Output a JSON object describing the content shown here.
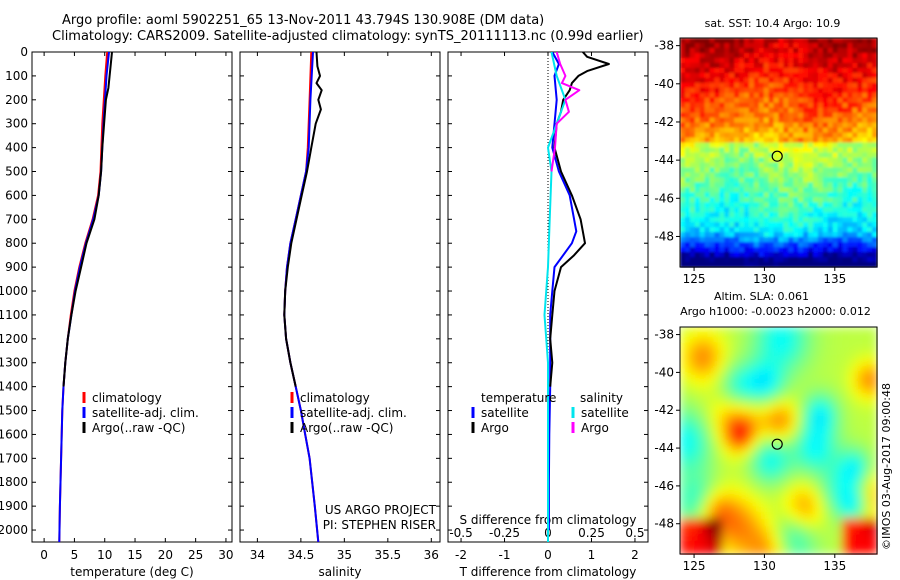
{
  "header": {
    "title1": "Argo profile: aoml 5902251_65 13-Nov-2011 43.794S 130.908E (DM data)",
    "title2": "Climatology: CARS2009. Satellite-adjusted climatology: synTS_20111113.nc (0.99d earlier)"
  },
  "colors": {
    "clim": "#ff0000",
    "sat": "#0000ff",
    "argo": "#000000",
    "sat_s": "#00e5ee",
    "argo_s": "#ff00ff"
  },
  "chart_data": [
    {
      "type": "line",
      "panel": "temperature",
      "title": "",
      "xlabel": "temperature (deg C)",
      "ylabel": "",
      "xlim": [
        -2,
        31
      ],
      "ylim": [
        2050,
        0
      ],
      "xticks": [
        "0",
        "5",
        "10",
        "15",
        "20",
        "25",
        "30"
      ],
      "xtick_values": [
        0,
        5,
        10,
        15,
        20,
        25,
        30
      ],
      "yticks": [
        "0",
        "100",
        "200",
        "300",
        "400",
        "500",
        "600",
        "700",
        "800",
        "900",
        "1000",
        "1100",
        "1200",
        "1300",
        "1400",
        "1500",
        "1600",
        "1700",
        "1800",
        "1900",
        "2000"
      ],
      "legend": [
        "climatology",
        "satellite-adj. clim.",
        "Argo(..raw -QC)"
      ],
      "series": [
        {
          "name": "climatology",
          "color": "clim",
          "depth": [
            0,
            100,
            300,
            500,
            600,
            700,
            800,
            900,
            1000,
            1100,
            1200,
            1300,
            1400,
            1500,
            1600,
            1700,
            1800,
            1900,
            2050
          ],
          "values": [
            10.4,
            10.1,
            9.6,
            9.3,
            8.9,
            8.0,
            6.8,
            5.8,
            5.0,
            4.4,
            3.9,
            3.5,
            3.2,
            3.0,
            2.9,
            2.8,
            2.7,
            2.6,
            2.5
          ]
        },
        {
          "name": "satellite-adj. clim.",
          "color": "sat",
          "depth": [
            0,
            100,
            300,
            500,
            600,
            700,
            800,
            900,
            1000,
            1100,
            1200,
            1300,
            1400,
            1500,
            1600,
            1700,
            1800,
            1900,
            2050
          ],
          "values": [
            10.7,
            10.3,
            9.8,
            9.4,
            9.0,
            8.1,
            6.9,
            5.9,
            5.1,
            4.5,
            3.9,
            3.5,
            3.2,
            3.0,
            2.9,
            2.8,
            2.7,
            2.6,
            2.5
          ]
        },
        {
          "name": "Argo(..raw -QC)",
          "color": "argo",
          "depth": [
            0,
            50,
            100,
            150,
            200,
            300,
            400,
            500,
            600,
            700,
            800,
            900,
            1000,
            1100,
            1200,
            1300,
            1400
          ],
          "values": [
            11.2,
            11.0,
            10.8,
            10.6,
            10.2,
            9.9,
            9.6,
            9.4,
            9.0,
            8.3,
            7.0,
            6.1,
            5.2,
            4.5,
            3.9,
            3.5,
            3.2
          ]
        }
      ]
    },
    {
      "type": "line",
      "panel": "salinity",
      "title": "",
      "xlabel": "salinity",
      "ylabel": "",
      "xlim": [
        33.8,
        36.1
      ],
      "ylim": [
        2050,
        0
      ],
      "xticks": [
        "34",
        "34.5",
        "35",
        "35.5",
        "36"
      ],
      "xtick_values": [
        34,
        34.5,
        35,
        35.5,
        36
      ],
      "legend": [
        "climatology",
        "satellite-adj. clim.",
        "Argo(..raw -QC)"
      ],
      "annotation": [
        "US ARGO PROJECT",
        "PI: STEPHEN RISER"
      ],
      "series": [
        {
          "name": "climatology",
          "color": "clim",
          "depth": [
            0,
            200,
            400,
            500,
            600,
            700,
            800,
            900,
            1000,
            1100,
            1200,
            1300,
            1400,
            1500,
            1600,
            1700,
            1800,
            1900,
            2050
          ],
          "values": [
            34.62,
            34.6,
            34.58,
            34.56,
            34.5,
            34.44,
            34.38,
            34.34,
            34.32,
            34.31,
            34.33,
            34.38,
            34.44,
            34.5,
            34.55,
            34.6,
            34.63,
            34.66,
            34.7
          ]
        },
        {
          "name": "satellite-adj. clim.",
          "color": "sat",
          "depth": [
            0,
            200,
            400,
            500,
            600,
            700,
            800,
            900,
            1000,
            1100,
            1200,
            1300,
            1400,
            1500,
            1600,
            1700,
            1800,
            1900,
            2050
          ],
          "values": [
            34.64,
            34.61,
            34.59,
            34.56,
            34.5,
            34.44,
            34.38,
            34.34,
            34.32,
            34.31,
            34.33,
            34.38,
            34.44,
            34.5,
            34.55,
            34.6,
            34.63,
            34.66,
            34.7
          ]
        },
        {
          "name": "Argo(..raw -QC)",
          "color": "argo",
          "depth": [
            0,
            60,
            100,
            130,
            160,
            200,
            240,
            300,
            400,
            500,
            600,
            700,
            800,
            900,
            1000,
            1100,
            1200,
            1300,
            1400
          ],
          "values": [
            34.68,
            34.69,
            34.72,
            34.68,
            34.74,
            34.7,
            34.73,
            34.67,
            34.62,
            34.57,
            34.51,
            34.45,
            34.39,
            34.35,
            34.32,
            34.31,
            34.33,
            34.38,
            34.44
          ]
        }
      ]
    },
    {
      "type": "line",
      "panel": "difference",
      "title": "",
      "xlabel": "T difference from climatology",
      "xlabel2": "S difference from climatology",
      "xlim": [
        -2.3,
        2.3
      ],
      "ylim": [
        2050,
        0
      ],
      "xticks": [
        "-2",
        "-1",
        "0",
        "1",
        "2"
      ],
      "xtick_values": [
        -2,
        -1,
        0,
        1,
        2
      ],
      "xticks2": [
        "-0.5",
        "-0.25",
        "0",
        "0.25",
        "0.5"
      ],
      "xtick2_values": [
        -0.5,
        -0.25,
        0,
        0.25,
        0.5
      ],
      "legend_t_title": "temperature",
      "legend_s_title": "salinity",
      "legend": [
        "satellite",
        "Argo",
        "satellite",
        "Argo"
      ],
      "series": [
        {
          "name": "T satellite",
          "color": "sat",
          "depth": [
            0,
            50,
            100,
            200,
            300,
            400,
            500,
            600,
            700,
            750,
            800,
            850,
            900,
            1000,
            1100,
            1200,
            1300,
            1400,
            1600,
            1800,
            2000
          ],
          "values": [
            0.1,
            0.25,
            0.15,
            0.2,
            0.15,
            0.1,
            0.25,
            0.5,
            0.6,
            0.65,
            0.55,
            0.35,
            0.15,
            0.1,
            0.05,
            0.05,
            0.05,
            0.05,
            0.03,
            0.02,
            0.02
          ]
        },
        {
          "name": "T Argo",
          "color": "argo",
          "depth": [
            0,
            20,
            50,
            80,
            100,
            130,
            160,
            200,
            250,
            300,
            400,
            500,
            600,
            700,
            800,
            850,
            900,
            1000,
            1100,
            1200,
            1300,
            1400
          ],
          "values": [
            0.8,
            0.9,
            1.4,
            0.9,
            0.7,
            0.55,
            0.5,
            0.35,
            0.3,
            0.2,
            0.15,
            0.3,
            0.55,
            0.75,
            0.85,
            0.6,
            0.3,
            0.15,
            0.1,
            0.05,
            0.1,
            0.05
          ]
        },
        {
          "name": "S satellite",
          "color": "sat_s",
          "depth": [
            0,
            100,
            200,
            300,
            400,
            500,
            700,
            900,
            1100,
            1300,
            1500,
            1700,
            1900,
            2050
          ],
          "values": [
            0.02,
            0.05,
            0.1,
            0.05,
            0.0,
            0.02,
            0.01,
            0.0,
            -0.02,
            0.0,
            0.0,
            0.0,
            0.0,
            0.0
          ]
        },
        {
          "name": "S Argo",
          "color": "argo_s",
          "depth": [
            0,
            50,
            100,
            130,
            160,
            200,
            250,
            300,
            400,
            500
          ],
          "values": [
            0.05,
            0.07,
            0.1,
            0.08,
            0.18,
            0.1,
            0.12,
            0.05,
            0.04,
            0.02
          ]
        }
      ]
    },
    {
      "type": "heatmap",
      "panel": "sst",
      "title": "sat. SST: 10.4  Argo: 10.9",
      "xlim": [
        124,
        138
      ],
      "ylim": [
        -49.6,
        -37.6
      ],
      "xticks": [
        "125",
        "130",
        "135"
      ],
      "xtick_values": [
        125,
        130,
        135
      ],
      "yticks": [
        "-38",
        "-40",
        "-42",
        "-44",
        "-46",
        "-48"
      ],
      "ytick_values": [
        -38,
        -40,
        -42,
        -44,
        -46,
        -48
      ],
      "marker": {
        "lon": 130.908,
        "lat": -43.794
      }
    },
    {
      "type": "heatmap",
      "panel": "sla",
      "title": "Altim. SLA: 0.061",
      "subtitle": "Argo h1000: -0.0023 h2000: 0.012",
      "xlim": [
        124,
        138
      ],
      "ylim": [
        -49.6,
        -37.6
      ],
      "xticks": [
        "125",
        "130",
        "135"
      ],
      "xtick_values": [
        125,
        130,
        135
      ],
      "yticks": [
        "-38",
        "-40",
        "-42",
        "-44",
        "-46",
        "-48"
      ],
      "ytick_values": [
        -38,
        -40,
        -42,
        -44,
        -46,
        -48
      ],
      "marker": {
        "lon": 130.908,
        "lat": -43.794
      }
    }
  ],
  "footer": {
    "credit": "©IMOS 03-Aug-2017 09:00:48"
  }
}
